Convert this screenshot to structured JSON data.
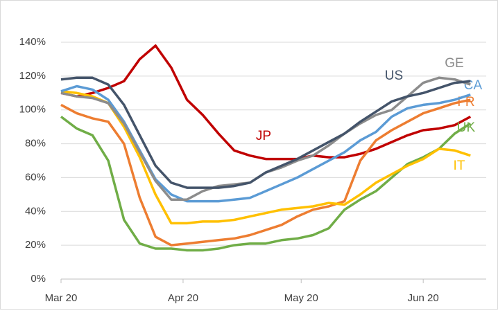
{
  "chart_data": {
    "type": "line",
    "x": [
      0,
      4,
      8,
      12,
      16,
      20,
      24,
      28,
      32,
      36,
      40,
      44,
      48,
      52,
      56,
      60,
      64,
      68,
      72,
      76,
      80,
      84,
      88,
      92,
      96,
      100,
      104
    ],
    "xlim": [
      0,
      108
    ],
    "xticks": [
      {
        "value": 0,
        "label": "Mar 20"
      },
      {
        "value": 31,
        "label": "Apr 20"
      },
      {
        "value": 61,
        "label": "May 20"
      },
      {
        "value": 92,
        "label": "Jun 20"
      }
    ],
    "ylim": [
      0,
      140
    ],
    "yticks": [
      {
        "value": 0,
        "label": "0%"
      },
      {
        "value": 20,
        "label": "20%"
      },
      {
        "value": 40,
        "label": "40%"
      },
      {
        "value": 60,
        "label": "60%"
      },
      {
        "value": 80,
        "label": "80%"
      },
      {
        "value": 100,
        "label": "100%"
      },
      {
        "value": 120,
        "label": "120%"
      },
      {
        "value": 140,
        "label": "140%"
      }
    ],
    "grid": true,
    "series": [
      {
        "name": "JP",
        "color": "#c00000",
        "values": [
          110,
          108,
          110,
          113,
          117,
          130,
          138,
          125,
          106,
          97,
          86,
          76,
          73,
          71,
          71,
          71,
          73,
          72,
          72,
          74,
          77,
          81,
          85,
          88,
          89,
          91,
          96
        ]
      },
      {
        "name": "UK",
        "color": "#70ad47",
        "values": [
          96,
          89,
          85,
          70,
          35,
          21,
          18,
          18,
          17,
          17,
          18,
          20,
          21,
          21,
          23,
          24,
          26,
          30,
          41,
          47,
          52,
          60,
          68,
          72,
          77,
          86,
          92
        ]
      },
      {
        "name": "FR",
        "color": "#ed7d31",
        "values": [
          103,
          98,
          95,
          93,
          80,
          48,
          25,
          20,
          21,
          22,
          23,
          24,
          26,
          29,
          32,
          37,
          41,
          43,
          46,
          70,
          82,
          88,
          93,
          98,
          101,
          104,
          106
        ]
      },
      {
        "name": "IT",
        "color": "#ffc000",
        "values": [
          111,
          110,
          108,
          104,
          90,
          72,
          50,
          33,
          33,
          34,
          34,
          35,
          37,
          39,
          41,
          42,
          43,
          45,
          44,
          50,
          57,
          62,
          67,
          71,
          77,
          76,
          73
        ]
      },
      {
        "name": "CA",
        "color": "#5b9bd5",
        "values": [
          111,
          114,
          112,
          106,
          93,
          76,
          59,
          50,
          46,
          46,
          46,
          47,
          48,
          52,
          56,
          60,
          65,
          70,
          75,
          82,
          87,
          96,
          101,
          103,
          104,
          106,
          109
        ]
      },
      {
        "name": "GE",
        "color": "#8c8c8c",
        "values": [
          110,
          108,
          107,
          104,
          92,
          75,
          58,
          47,
          47,
          52,
          55,
          56,
          57,
          63,
          66,
          70,
          73,
          79,
          86,
          92,
          97,
          100,
          108,
          116,
          119,
          118,
          115
        ]
      },
      {
        "name": "US",
        "color": "#44546a",
        "values": [
          118,
          119,
          119,
          115,
          103,
          85,
          67,
          57,
          54,
          54,
          54,
          55,
          57,
          63,
          67,
          71,
          76,
          81,
          86,
          93,
          99,
          105,
          108,
          110,
          113,
          116,
          117
        ]
      }
    ]
  }
}
